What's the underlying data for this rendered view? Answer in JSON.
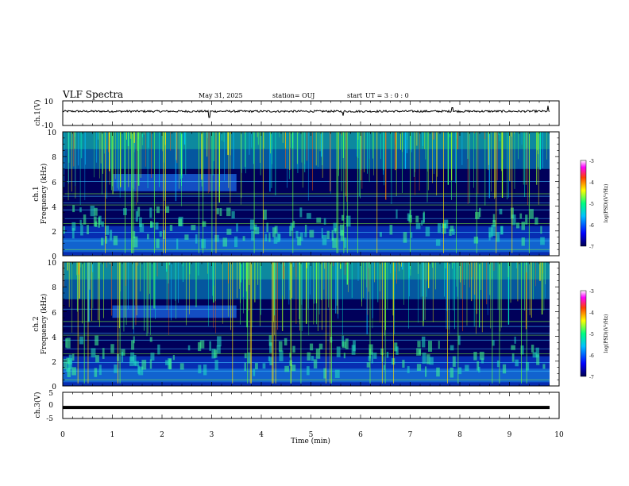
{
  "header": {
    "title": "VLF Spectra",
    "date": "May 31, 2025",
    "station": "station= OUJ",
    "start_prefix": "start",
    "start_ut": "UT =  3 : 0  : 0"
  },
  "colors": {
    "spectrogram_bg": "#00005a",
    "trace": "#000000",
    "colorbar": [
      "#000050",
      "#0000ff",
      "#00bfff",
      "#00ff80",
      "#ffff00",
      "#ff4000",
      "#ff00ff",
      "#ffffff"
    ]
  },
  "chart_data": [
    {
      "id": "ch1-waveform",
      "type": "line",
      "ylabel": "ch.1(V)",
      "ylim": [
        -10,
        10
      ],
      "ytick_labels": [
        "10",
        "-10"
      ],
      "xlim": [
        0,
        10
      ],
      "baseline": 1.5,
      "spikes": [
        {
          "t": 2.95,
          "v": -3.5
        },
        {
          "t": 5.65,
          "v": -2
        },
        {
          "t": 7.85,
          "v": 4.5
        },
        {
          "t": 9.78,
          "v": 6
        }
      ]
    },
    {
      "id": "ch1-spectrogram",
      "type": "heatmap",
      "ylabel": "Frequency (kHz)",
      "channel": "ch.1",
      "ylim": [
        0,
        10
      ],
      "ytick_labels": [
        "0",
        "2",
        "4",
        "6",
        "8",
        "10"
      ],
      "xlim": [
        0,
        10
      ],
      "tone_lines_khz": [
        0.5,
        1.2,
        1.9,
        2.6,
        3.0,
        3.7,
        4.1,
        4.25,
        4.8,
        5.0,
        6.0
      ],
      "hiss_band_khz": [
        5.2,
        6.6
      ],
      "hiss_band_time_min": [
        1.0,
        3.5
      ],
      "colorbar": {
        "label": "log(PSD)(V²/Hz)",
        "range": [
          -7,
          -3
        ],
        "tick_labels": [
          "-3",
          "-4",
          "-5",
          "-6",
          "-7"
        ]
      }
    },
    {
      "id": "ch2-spectrogram",
      "type": "heatmap",
      "ylabel": "Frequency (kHz)",
      "channel": "ch.2",
      "ylim": [
        0,
        10
      ],
      "ytick_labels": [
        "0",
        "2",
        "4",
        "6",
        "8",
        "10"
      ],
      "xlim": [
        0,
        10
      ],
      "tone_lines_khz": [
        0.5,
        1.2,
        1.9,
        2.6,
        3.0,
        3.7,
        4.1,
        4.25,
        4.8,
        5.2,
        6.2
      ],
      "hiss_band_khz": [
        5.5,
        6.5
      ],
      "hiss_band_time_min": [
        1.0,
        3.5
      ],
      "colorbar": {
        "label": "log(PSD)(V²/Hz)",
        "range": [
          -7,
          -3
        ],
        "tick_labels": [
          "-3",
          "-4",
          "-5",
          "-6",
          "-7"
        ]
      }
    },
    {
      "id": "ch3-waveform",
      "type": "line",
      "ylabel": "ch.3(V)",
      "ylim": [
        -5,
        5
      ],
      "ytick_labels": [
        "5",
        "0",
        "-5"
      ],
      "xlim": [
        0,
        10
      ],
      "baseline": -0.8
    }
  ],
  "xaxis": {
    "label": "Time  (min)",
    "tick_labels": [
      "0",
      "1",
      "2",
      "3",
      "4",
      "5",
      "6",
      "7",
      "8",
      "9",
      "10"
    ]
  }
}
